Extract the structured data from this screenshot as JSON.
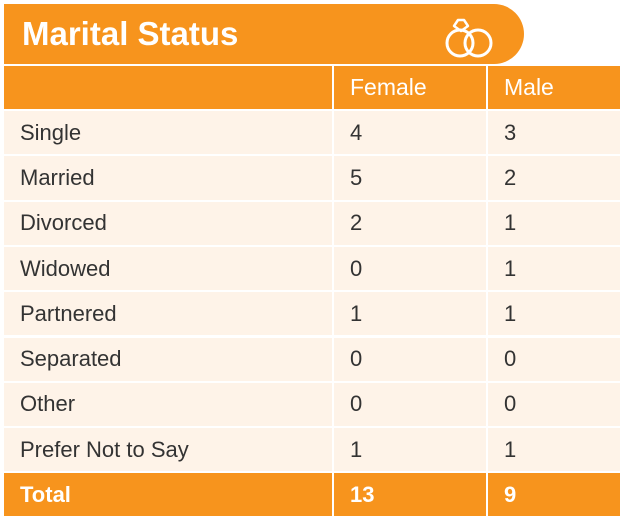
{
  "header": {
    "title": "Marital Status"
  },
  "table": {
    "columns": [
      "Female",
      "Male"
    ],
    "rows": [
      {
        "label": "Single",
        "values": [
          4,
          3
        ]
      },
      {
        "label": "Married",
        "values": [
          5,
          2
        ]
      },
      {
        "label": "Divorced",
        "values": [
          2,
          1
        ]
      },
      {
        "label": "Widowed",
        "values": [
          0,
          1
        ]
      },
      {
        "label": "Partnered",
        "values": [
          1,
          1
        ]
      },
      {
        "label": "Separated",
        "values": [
          0,
          0
        ]
      },
      {
        "label": "Other",
        "values": [
          0,
          0
        ]
      },
      {
        "label": "Prefer Not to Say",
        "values": [
          1,
          1
        ]
      }
    ],
    "total": {
      "label": "Total",
      "values": [
        13,
        9
      ]
    }
  }
}
